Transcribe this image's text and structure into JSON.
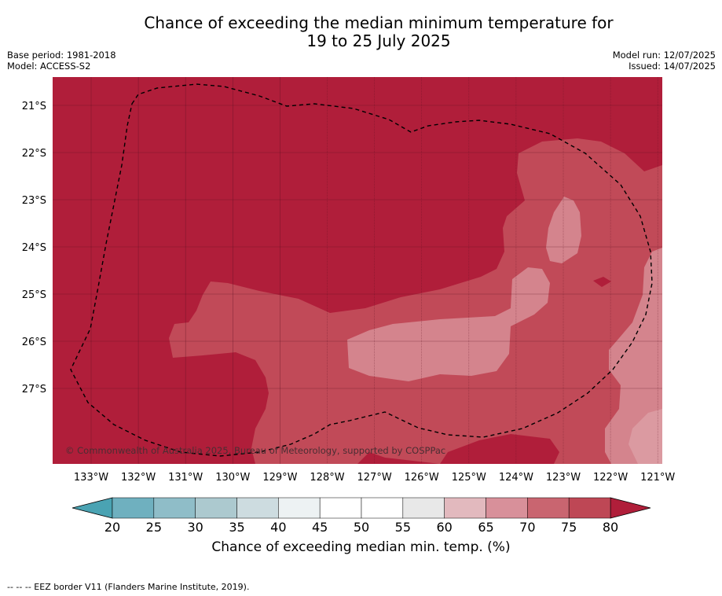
{
  "title_line1": "Chance of exceeding the median minimum temperature for",
  "title_line2": "19 to 25 July 2025",
  "base_period": "Base period: 1981-2018",
  "model": "Model: ACCESS-S2",
  "model_run": "Model run: 12/07/2025",
  "issued": "Issued: 14/07/2025",
  "copyright": "© Commonwealth of Australia 2025, Bureau of Meteorology, supported by COSPPac",
  "lat_labels": [
    "21°S",
    "22°S",
    "23°S",
    "24°S",
    "25°S",
    "26°S",
    "27°S"
  ],
  "lon_labels": [
    "133°W",
    "132°W",
    "131°W",
    "130°W",
    "129°W",
    "128°W",
    "127°W",
    "126°W",
    "125°W",
    "124°W",
    "123°W",
    "122°W",
    "121°W"
  ],
  "colorbar": {
    "ticks": [
      "20",
      "25",
      "30",
      "35",
      "40",
      "45",
      "50",
      "55",
      "60",
      "65",
      "70",
      "75",
      "80"
    ],
    "colors": [
      "#6fb0bf",
      "#8fbdc8",
      "#acc9cf",
      "#cddce0",
      "#edf2f3",
      "#ffffff",
      "#ffffff",
      "#e8e8e8",
      "#e2b9be",
      "#d8909a",
      "#c96570",
      "#be4755"
    ],
    "under_color": "#4aa3b3",
    "over_color": "#b01e3a",
    "label": "Chance of exceeding median min. temp. (%)"
  },
  "footer": "--  --  -- EEZ border V11 (Flanders Marine Institute, 2019).",
  "legend_colors": {
    "dark": "#b01e3a",
    "mid": "#c14a58",
    "light": "#d4848d",
    "lighter": "#db9aa1"
  }
}
